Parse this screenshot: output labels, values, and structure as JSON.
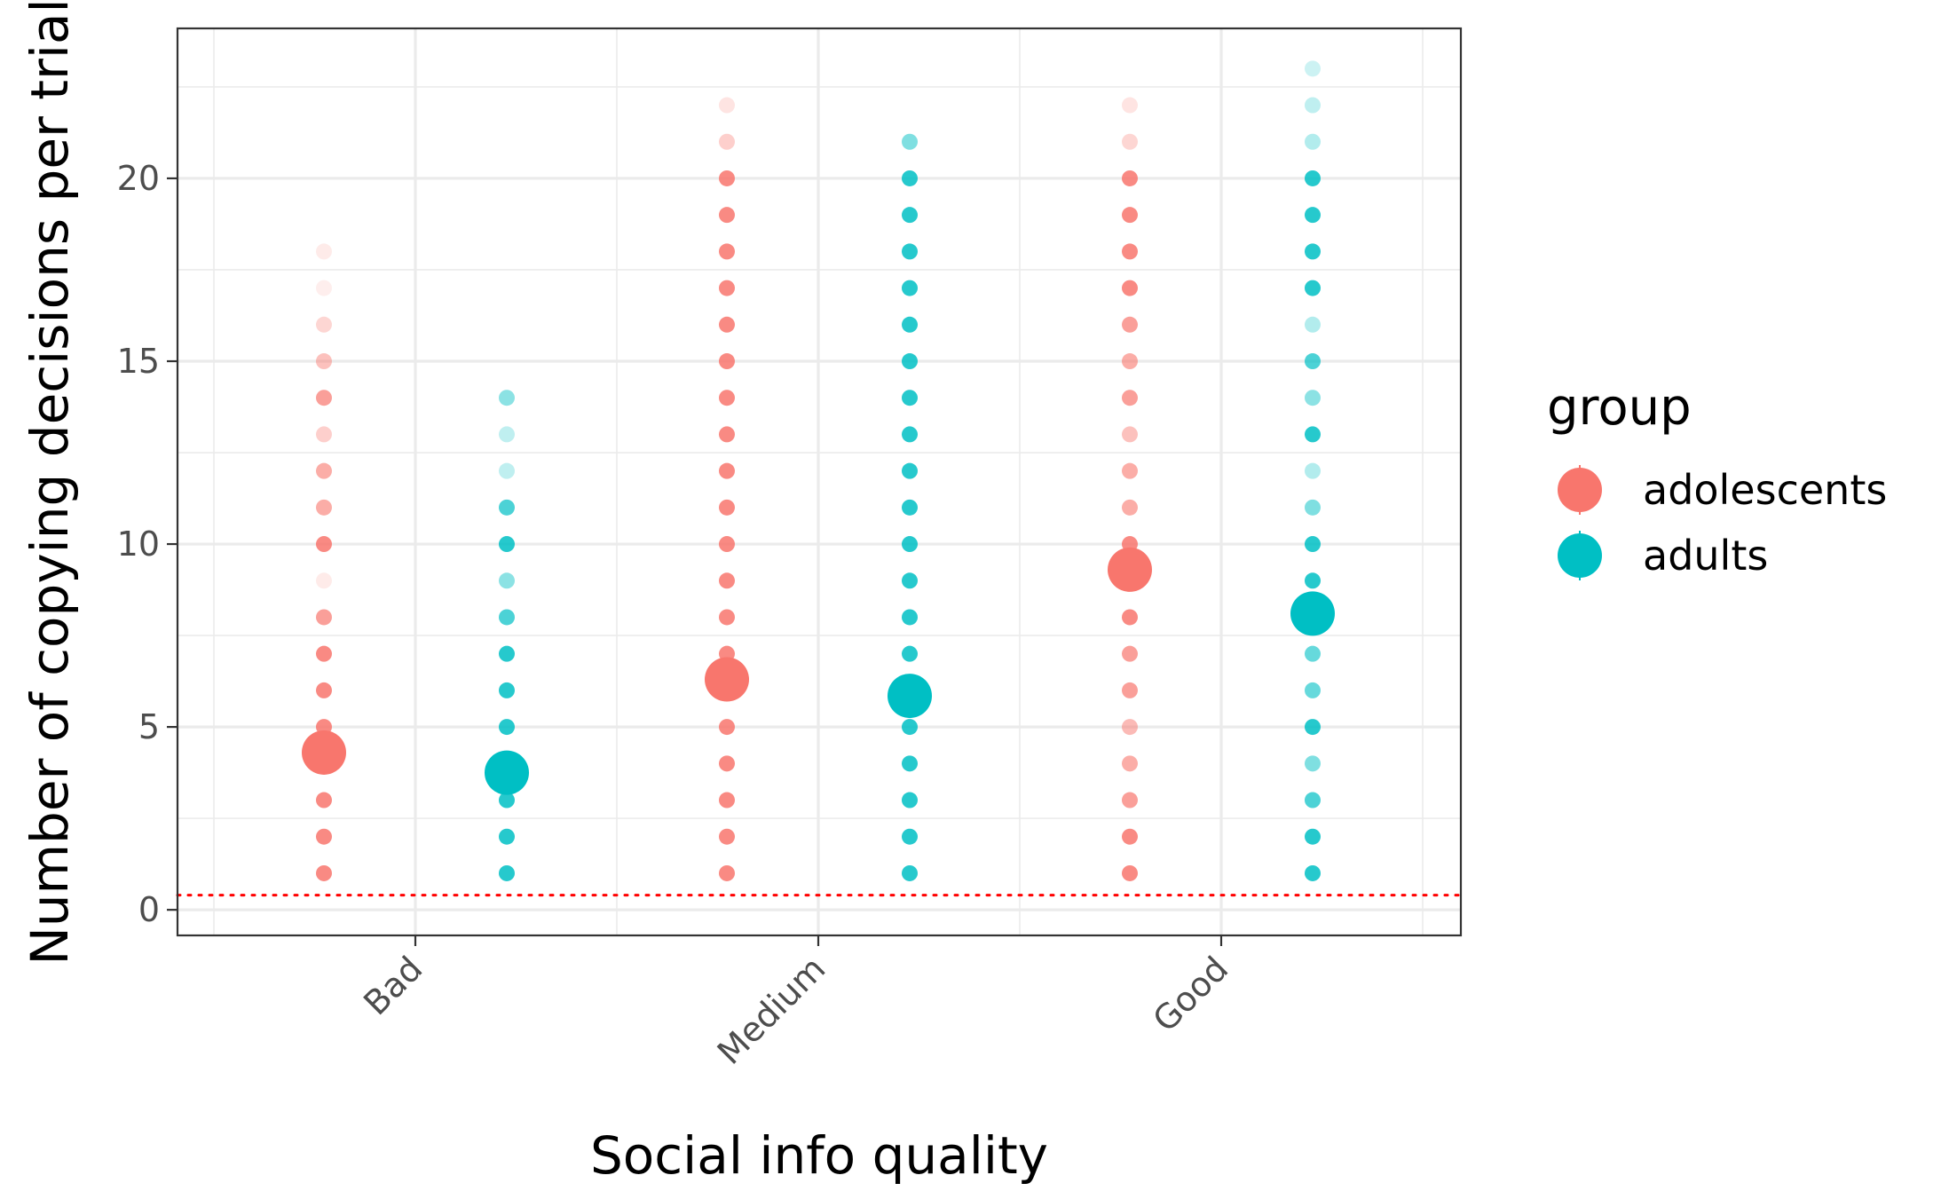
{
  "chart_data": {
    "type": "scatter",
    "title": "",
    "xlabel": "Social info quality",
    "ylabel": "Number of copying decisions per trial",
    "categories": [
      "Bad",
      "Medium",
      "Good"
    ],
    "y_ticks": [
      0,
      5,
      10,
      15,
      20
    ],
    "ylim": [
      -0.7,
      24.1
    ],
    "grid": true,
    "reference_line": {
      "y": 0.4,
      "style": "dotted",
      "color": "#ff0000"
    },
    "legend": {
      "title": "group",
      "position": "right"
    },
    "series": [
      {
        "name": "adolescents",
        "color": "#f8766d",
        "means": [
          4.3,
          6.3,
          9.3
        ],
        "points": [
          [
            [
              1,
              0.85
            ],
            [
              2,
              0.85
            ],
            [
              3,
              0.85
            ],
            [
              5,
              0.85
            ],
            [
              6,
              0.85
            ],
            [
              7,
              0.85
            ],
            [
              8,
              0.7
            ],
            [
              9,
              0.15
            ],
            [
              10,
              0.85
            ],
            [
              11,
              0.6
            ],
            [
              12,
              0.6
            ],
            [
              13,
              0.35
            ],
            [
              14,
              0.7
            ],
            [
              15,
              0.45
            ],
            [
              16,
              0.3
            ],
            [
              17,
              0.12
            ],
            [
              18,
              0.15
            ]
          ],
          [
            [
              1,
              0.85
            ],
            [
              2,
              0.85
            ],
            [
              3,
              0.85
            ],
            [
              4,
              0.85
            ],
            [
              5,
              0.85
            ],
            [
              7,
              0.85
            ],
            [
              8,
              0.85
            ],
            [
              9,
              0.85
            ],
            [
              10,
              0.85
            ],
            [
              11,
              0.85
            ],
            [
              12,
              0.85
            ],
            [
              13,
              0.85
            ],
            [
              14,
              0.85
            ],
            [
              15,
              0.85
            ],
            [
              16,
              0.85
            ],
            [
              17,
              0.85
            ],
            [
              18,
              0.85
            ],
            [
              19,
              0.85
            ],
            [
              20,
              0.85
            ],
            [
              21,
              0.35
            ],
            [
              22,
              0.2
            ]
          ],
          [
            [
              1,
              0.85
            ],
            [
              2,
              0.85
            ],
            [
              3,
              0.7
            ],
            [
              4,
              0.6
            ],
            [
              5,
              0.5
            ],
            [
              6,
              0.7
            ],
            [
              7,
              0.7
            ],
            [
              8,
              0.85
            ],
            [
              10,
              0.85
            ],
            [
              11,
              0.6
            ],
            [
              12,
              0.6
            ],
            [
              13,
              0.45
            ],
            [
              14,
              0.7
            ],
            [
              15,
              0.6
            ],
            [
              16,
              0.7
            ],
            [
              17,
              0.85
            ],
            [
              18,
              0.85
            ],
            [
              19,
              0.85
            ],
            [
              20,
              0.85
            ],
            [
              21,
              0.3
            ],
            [
              22,
              0.2
            ]
          ]
        ]
      },
      {
        "name": "adults",
        "color": "#00bfc4",
        "means": [
          3.75,
          5.85,
          8.1
        ],
        "points": [
          [
            [
              1,
              0.85
            ],
            [
              2,
              0.85
            ],
            [
              3,
              0.85
            ],
            [
              5,
              0.85
            ],
            [
              6,
              0.85
            ],
            [
              7,
              0.85
            ],
            [
              8,
              0.7
            ],
            [
              9,
              0.45
            ],
            [
              10,
              0.85
            ],
            [
              11,
              0.7
            ],
            [
              12,
              0.25
            ],
            [
              13,
              0.25
            ],
            [
              14,
              0.45
            ]
          ],
          [
            [
              1,
              0.85
            ],
            [
              2,
              0.85
            ],
            [
              3,
              0.85
            ],
            [
              4,
              0.85
            ],
            [
              5,
              0.85
            ],
            [
              7,
              0.85
            ],
            [
              8,
              0.85
            ],
            [
              9,
              0.85
            ],
            [
              10,
              0.85
            ],
            [
              11,
              0.85
            ],
            [
              12,
              0.85
            ],
            [
              13,
              0.85
            ],
            [
              14,
              0.85
            ],
            [
              15,
              0.85
            ],
            [
              16,
              0.85
            ],
            [
              17,
              0.85
            ],
            [
              18,
              0.85
            ],
            [
              19,
              0.85
            ],
            [
              20,
              0.85
            ],
            [
              21,
              0.5
            ]
          ],
          [
            [
              1,
              0.85
            ],
            [
              2,
              0.85
            ],
            [
              3,
              0.7
            ],
            [
              4,
              0.5
            ],
            [
              5,
              0.85
            ],
            [
              6,
              0.6
            ],
            [
              7,
              0.6
            ],
            [
              9,
              0.85
            ],
            [
              10,
              0.85
            ],
            [
              11,
              0.5
            ],
            [
              12,
              0.3
            ],
            [
              13,
              0.85
            ],
            [
              14,
              0.45
            ],
            [
              15,
              0.7
            ],
            [
              16,
              0.3
            ],
            [
              17,
              0.85
            ],
            [
              18,
              0.85
            ],
            [
              19,
              0.85
            ],
            [
              20,
              0.85
            ],
            [
              21,
              0.3
            ],
            [
              22,
              0.25
            ],
            [
              23,
              0.2
            ]
          ]
        ]
      }
    ]
  }
}
